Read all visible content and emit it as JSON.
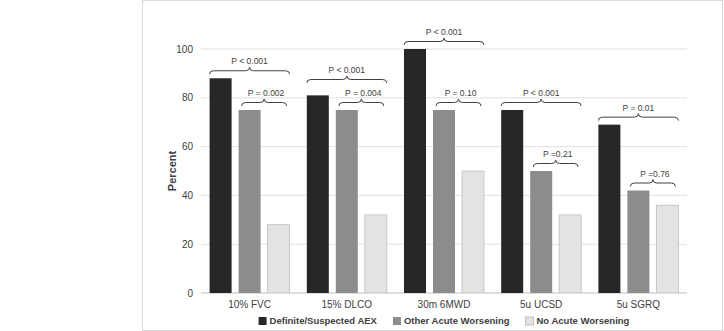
{
  "chart_data": {
    "type": "bar",
    "y_label": "Percent",
    "categories": [
      "10% FVC",
      "15% DLCO",
      "30m 6MWD",
      "5u UCSD",
      "5u SGRQ"
    ],
    "series": [
      {
        "name": "Definite/Suspected AEX",
        "color": "#262626",
        "values": [
          88,
          81,
          100,
          75,
          69
        ]
      },
      {
        "name": "Other Acute Worsening",
        "color": "#8c8c8c",
        "values": [
          75,
          75,
          75,
          50,
          42
        ]
      },
      {
        "name": "No Acute Worsening",
        "color": "#e3e3e3",
        "values": [
          28,
          32,
          50,
          32,
          36
        ]
      }
    ],
    "annotations": [
      [
        "P < 0.001",
        "P = 0.002"
      ],
      [
        "P < 0.001",
        "P = 0.004"
      ],
      [
        "P < 0.001",
        "P = 0.10"
      ],
      [
        "P < 0.001",
        "P =0.21"
      ],
      [
        "P = 0.01",
        "P =0.76"
      ]
    ],
    "ylim": [
      0,
      100
    ],
    "yticks": [
      0,
      20,
      40,
      60,
      80,
      100
    ],
    "grid": true,
    "legend": "bottom"
  }
}
